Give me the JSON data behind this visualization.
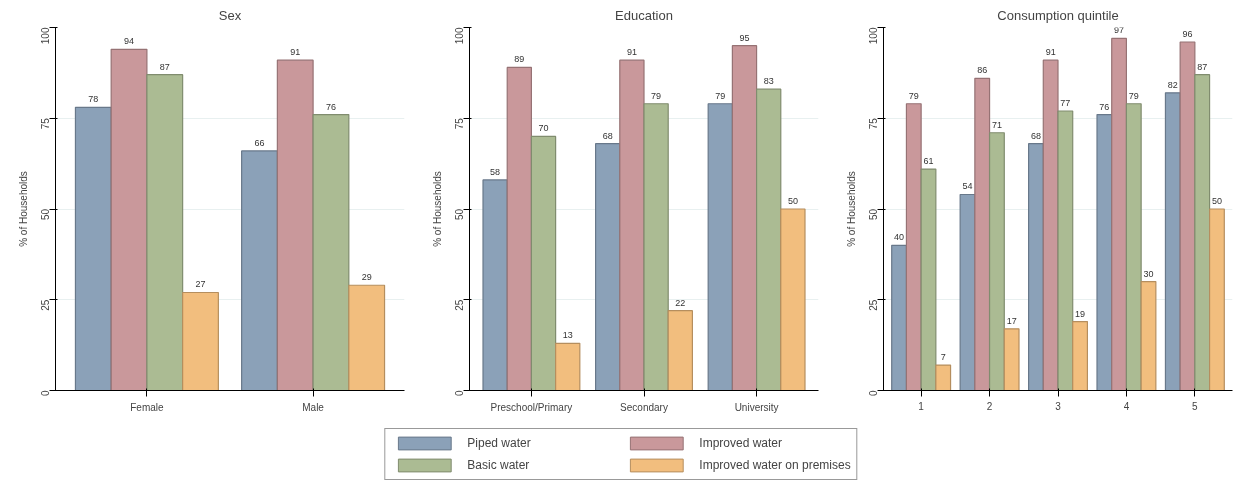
{
  "chart_data": [
    {
      "type": "bar",
      "title": "Sex",
      "ylabel": "% of Households",
      "categories": [
        "Female",
        "Male"
      ],
      "ylim": [
        0,
        100
      ],
      "yticks": [
        0,
        25,
        50,
        75,
        100
      ],
      "grid": "y",
      "data_labels": true,
      "series": [
        {
          "color": "#8ba1b8",
          "values": [
            78,
            66
          ]
        },
        {
          "color": "#c9989b",
          "values": [
            94,
            91
          ]
        },
        {
          "color": "#abbb93",
          "values": [
            87,
            76
          ]
        },
        {
          "color": "#f2be7e",
          "values": [
            27,
            29
          ]
        }
      ]
    },
    {
      "type": "bar",
      "title": "Education",
      "ylabel": "% of Households",
      "categories": [
        "Preschool/Primary",
        "Secondary",
        "University"
      ],
      "ylim": [
        0,
        100
      ],
      "yticks": [
        0,
        25,
        50,
        75,
        100
      ],
      "grid": "y",
      "data_labels": true,
      "legend": "bottom",
      "series": [
        {
          "name": "Piped water",
          "color": "#8ba1b8",
          "values": [
            58,
            68,
            79
          ]
        },
        {
          "name": "Improved water",
          "color": "#c9989b",
          "values": [
            89,
            91,
            95
          ]
        },
        {
          "name": "Basic water",
          "color": "#abbb93",
          "values": [
            70,
            79,
            83
          ]
        },
        {
          "name": "Improved water on premises",
          "color": "#f2be7e",
          "values": [
            13,
            22,
            50
          ]
        }
      ]
    },
    {
      "type": "bar",
      "title": "Consumption quintile",
      "ylabel": "% of Households",
      "categories": [
        "1",
        "2",
        "3",
        "4",
        "5"
      ],
      "ylim": [
        0,
        100
      ],
      "yticks": [
        0,
        25,
        50,
        75,
        100
      ],
      "grid": "y",
      "data_labels": true,
      "series": [
        {
          "color": "#8ba1b8",
          "values": [
            40,
            54,
            68,
            76,
            82
          ]
        },
        {
          "color": "#c9989b",
          "values": [
            79,
            86,
            91,
            97,
            96
          ]
        },
        {
          "color": "#abbb93",
          "values": [
            61,
            71,
            77,
            79,
            87
          ]
        },
        {
          "color": "#f2be7e",
          "values": [
            7,
            17,
            19,
            30,
            50
          ]
        }
      ]
    }
  ]
}
